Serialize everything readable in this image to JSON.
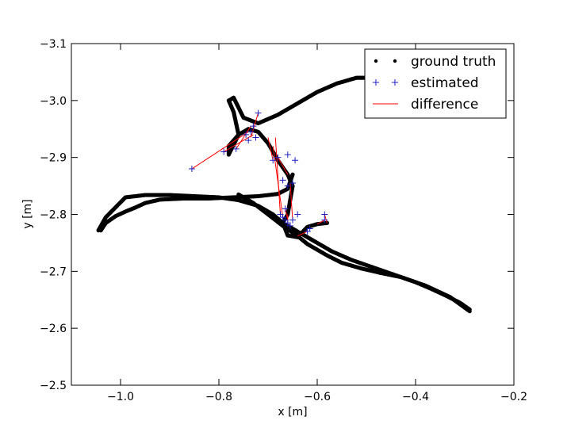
{
  "chart_data": {
    "type": "scatter",
    "title": "",
    "xlabel": "x [m]",
    "ylabel": "y [m]",
    "xlim": [
      -1.1,
      -0.2
    ],
    "ylim": [
      -3.1,
      -2.5
    ],
    "xticks": [
      "−1.0",
      "−0.8",
      "−0.6",
      "−0.4",
      "−0.2"
    ],
    "xtick_values": [
      -1.0,
      -0.8,
      -0.6,
      -0.4,
      -0.2
    ],
    "yticks": [
      "−2.5",
      "−2.6",
      "−2.7",
      "−2.8",
      "−2.9",
      "−3.0",
      "−3.1"
    ],
    "ytick_values": [
      -2.5,
      -2.6,
      -2.7,
      -2.8,
      -2.9,
      -3.0,
      -3.1
    ],
    "grid": false,
    "legend_position": "top-right",
    "legend": [
      "ground truth",
      "estimated",
      "difference"
    ],
    "colors": {
      "ground_truth": "#000000",
      "estimated": "#1f1fbf",
      "difference": "#ff0000"
    },
    "series": [
      {
        "name": "ground truth",
        "style": "dots",
        "x": [
          -0.29,
          -0.33,
          -0.38,
          -0.43,
          -0.48,
          -0.53,
          -0.57,
          -0.6,
          -0.63,
          -0.65,
          -0.67,
          -0.69,
          -0.72,
          -0.76,
          -0.8,
          -0.85,
          -0.9,
          -0.95,
          -0.99,
          -1.03,
          -1.045,
          -1.04,
          -1.03,
          -1.01,
          -0.99,
          -0.97,
          -0.95,
          -0.92,
          -0.87,
          -0.82,
          -0.77,
          -0.72,
          -0.68,
          -0.66,
          -0.65
        ],
        "y": [
          -2.63,
          -2.655,
          -2.675,
          -2.69,
          -2.705,
          -2.72,
          -2.735,
          -2.75,
          -2.765,
          -2.775,
          -2.785,
          -2.8,
          -2.815,
          -2.825,
          -2.83,
          -2.832,
          -2.834,
          -2.834,
          -2.83,
          -2.795,
          -2.772,
          -2.772,
          -2.785,
          -2.797,
          -2.805,
          -2.812,
          -2.82,
          -2.826,
          -2.828,
          -2.828,
          -2.83,
          -2.832,
          -2.836,
          -2.845,
          -2.87
        ]
      },
      {
        "name": "ground truth",
        "style": "dots",
        "x": [
          -0.58,
          -0.6,
          -0.62,
          -0.64,
          -0.66,
          -0.67,
          -0.66,
          -0.65,
          -0.66,
          -0.68,
          -0.7,
          -0.72,
          -0.74,
          -0.76,
          -0.78,
          -0.78,
          -0.76,
          -0.765,
          -0.77,
          -0.78,
          -0.77,
          -0.75,
          -0.72,
          -0.68,
          -0.64,
          -0.6,
          -0.56,
          -0.52,
          -0.5,
          -0.49
        ],
        "y": [
          -2.785,
          -2.783,
          -2.778,
          -2.76,
          -2.763,
          -2.785,
          -2.8,
          -2.85,
          -2.87,
          -2.895,
          -2.925,
          -2.945,
          -2.95,
          -2.94,
          -2.92,
          -2.905,
          -2.94,
          -2.96,
          -2.98,
          -3.0,
          -3.005,
          -2.97,
          -2.96,
          -2.975,
          -2.995,
          -3.015,
          -3.03,
          -3.04,
          -3.04,
          -3.058
        ]
      },
      {
        "name": "ground truth",
        "style": "dots",
        "x": [
          -0.76,
          -0.73,
          -0.7,
          -0.67,
          -0.64,
          -0.62,
          -0.6,
          -0.58,
          -0.55,
          -0.51,
          -0.47,
          -0.43,
          -0.4,
          -0.37,
          -0.34,
          -0.31,
          -0.29
        ],
        "y": [
          -2.835,
          -2.82,
          -2.8,
          -2.78,
          -2.762,
          -2.748,
          -2.738,
          -2.728,
          -2.715,
          -2.705,
          -2.697,
          -2.69,
          -2.681,
          -2.67,
          -2.658,
          -2.645,
          -2.633
        ]
      },
      {
        "name": "estimated",
        "style": "plus",
        "x": [
          -0.855,
          -0.79,
          -0.765,
          -0.74,
          -0.735,
          -0.73,
          -0.745,
          -0.725,
          -0.72,
          -0.69,
          -0.675,
          -0.67,
          -0.665,
          -0.66,
          -0.655,
          -0.65,
          -0.64,
          -0.62,
          -0.615,
          -0.585,
          -0.585,
          -0.67,
          -0.65,
          -0.66,
          -0.68,
          -0.66,
          -0.645,
          -0.665
        ],
        "y": [
          -2.88,
          -2.91,
          -2.915,
          -2.93,
          -2.945,
          -2.955,
          -2.94,
          -2.935,
          -2.978,
          -2.895,
          -2.8,
          -2.795,
          -2.79,
          -2.785,
          -2.78,
          -2.79,
          -2.8,
          -2.77,
          -2.775,
          -2.79,
          -2.8,
          -2.86,
          -2.855,
          -2.85,
          -2.9,
          -2.905,
          -2.895,
          -2.81
        ]
      }
    ],
    "differences": [
      {
        "x": [
          -0.855,
          -0.74
        ],
        "y": [
          -2.88,
          -2.945
        ]
      },
      {
        "x": [
          -0.79,
          -0.73
        ],
        "y": [
          -2.91,
          -2.94
        ]
      },
      {
        "x": [
          -0.765,
          -0.735
        ],
        "y": [
          -2.915,
          -2.955
        ]
      },
      {
        "x": [
          -0.72,
          -0.735
        ],
        "y": [
          -2.978,
          -2.935
        ]
      },
      {
        "x": [
          -0.69,
          -0.7
        ],
        "y": [
          -2.895,
          -2.935
        ]
      },
      {
        "x": [
          -0.675,
          -0.685
        ],
        "y": [
          -2.8,
          -2.935
        ]
      },
      {
        "x": [
          -0.67,
          -0.69
        ],
        "y": [
          -2.795,
          -2.92
        ]
      },
      {
        "x": [
          -0.66,
          -0.66
        ],
        "y": [
          -2.785,
          -2.8
        ]
      },
      {
        "x": [
          -0.65,
          -0.655
        ],
        "y": [
          -2.79,
          -2.855
        ]
      },
      {
        "x": [
          -0.62,
          -0.64
        ],
        "y": [
          -2.77,
          -2.762
        ]
      },
      {
        "x": [
          -0.585,
          -0.6
        ],
        "y": [
          -2.79,
          -2.783
        ]
      },
      {
        "x": [
          -0.585,
          -0.58
        ],
        "y": [
          -2.8,
          -2.785
        ]
      },
      {
        "x": [
          -0.68,
          -0.66
        ],
        "y": [
          -2.9,
          -2.87
        ]
      },
      {
        "x": [
          -0.665,
          -0.66
        ],
        "y": [
          -2.81,
          -2.79
        ]
      },
      {
        "x": [
          -0.5,
          -0.475
        ],
        "y": [
          -3.04,
          -3.033
        ]
      },
      {
        "x": [
          -0.49,
          -0.47
        ],
        "y": [
          -3.055,
          -3.045
        ]
      }
    ]
  }
}
